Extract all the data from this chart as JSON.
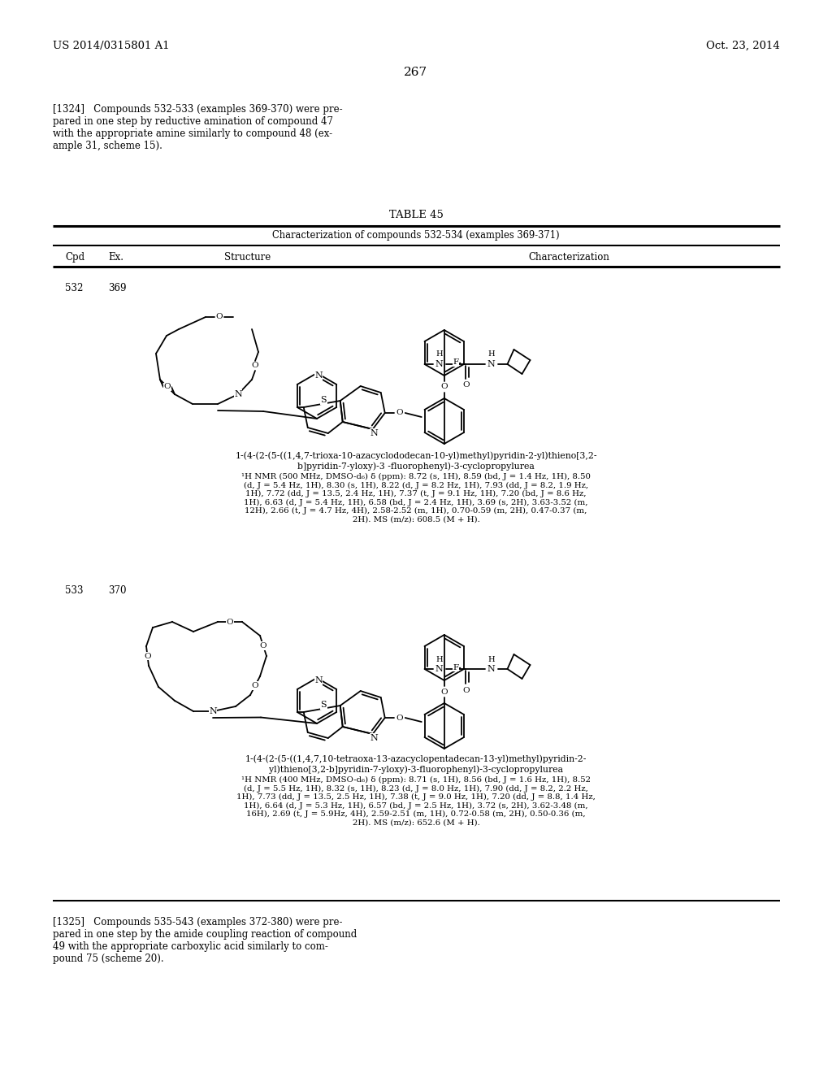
{
  "page_width": 10.24,
  "page_height": 13.2,
  "bg_color": "#ffffff",
  "header_left": "US 2014/0315801 A1",
  "header_right": "Oct. 23, 2014",
  "page_number": "267",
  "para_1324": "[1324]   Compounds 532-533 (examples 369-370) were pre-\npared in one step by reductive amination of compound 47\nwith the appropriate amine similarly to compound 48 (ex-\nample 31, scheme 15).",
  "table_title": "TABLE 45",
  "table_subtitle": "Characterization of compounds 532-534 (examples 369-371)",
  "col_cpd": "Cpd",
  "col_ex": "Ex.",
  "col_struct": "Structure",
  "col_char": "Characterization",
  "r1_cpd": "532",
  "r1_ex": "369",
  "r1_name_l1": "1-(4-(2-(5-((1,4,7-trioxa-10-azacyclododecan-10-yl)methyl)pyridin-2-yl)thieno[3,2-",
  "r1_name_l2": "b]pyridin-7-yloxy)-3 -fluorophenyl)-3-cyclopropylurea",
  "r1_nmr": "¹H NMR (500 MHz, DMSO-d₆) δ (ppm): 8.72 (s, 1H), 8.59 (bd, J = 1.4 Hz, 1H), 8.50\n(d, J = 5.4 Hz, 1H), 8.30 (s, 1H), 8.22 (d, J = 8.2 Hz, 1H), 7.93 (dd, J = 8.2, 1.9 Hz,\n1H), 7.72 (dd, J = 13.5, 2.4 Hz, 1H), 7.37 (t, J = 9.1 Hz, 1H), 7.20 (bd, J = 8.6 Hz,\n1H), 6.63 (d, J = 5.4 Hz, 1H), 6.58 (bd, J = 2.4 Hz, 1H), 3.69 (s, 2H), 3.63-3.52 (m,\n12H), 2.66 (t, J = 4.7 Hz, 4H), 2.58-2.52 (m, 1H), 0.70-0.59 (m, 2H), 0.47-0.37 (m,\n2H). MS (m/z): 608.5 (M + H).",
  "r2_cpd": "533",
  "r2_ex": "370",
  "r2_name_l1": "1-(4-(2-(5-((1,4,7,10-tetraoxa-13-azacyclopentadecan-13-yl)methyl)pyridin-2-",
  "r2_name_l2": "yl)thieno[3,2-b]pyridin-7-yloxy)-3-fluorophenyl)-3-cyclopropylurea",
  "r2_nmr": "¹H NMR (400 MHz, DMSO-d₆) δ (ppm): 8.71 (s, 1H), 8.56 (bd, J = 1.6 Hz, 1H), 8.52\n(d, J = 5.5 Hz, 1H), 8.32 (s, 1H), 8.23 (d, J = 8.0 Hz, 1H), 7.90 (dd, J = 8.2, 2.2 Hz,\n1H), 7.73 (dd, J = 13.5, 2.5 Hz, 1H), 7.38 (t, J = 9.0 Hz, 1H), 7.20 (dd, J = 8.8, 1.4 Hz,\n1H), 6.64 (d, J = 5.3 Hz, 1H), 6.57 (bd, J = 2.5 Hz, 1H), 3.72 (s, 2H), 3.62-3.48 (m,\n16H), 2.69 (t, J = 5.9Hz, 4H), 2.59-2.51 (m, 1H), 0.72-0.58 (m, 2H), 0.50-0.36 (m,\n2H). MS (m/z): 652.6 (M + H).",
  "para_1325": "[1325]   Compounds 535-543 (examples 372-380) were pre-\npared in one step by the amide coupling reaction of compound\n49 with the appropriate carboxylic acid similarly to com-\npound 75 (scheme 20)."
}
